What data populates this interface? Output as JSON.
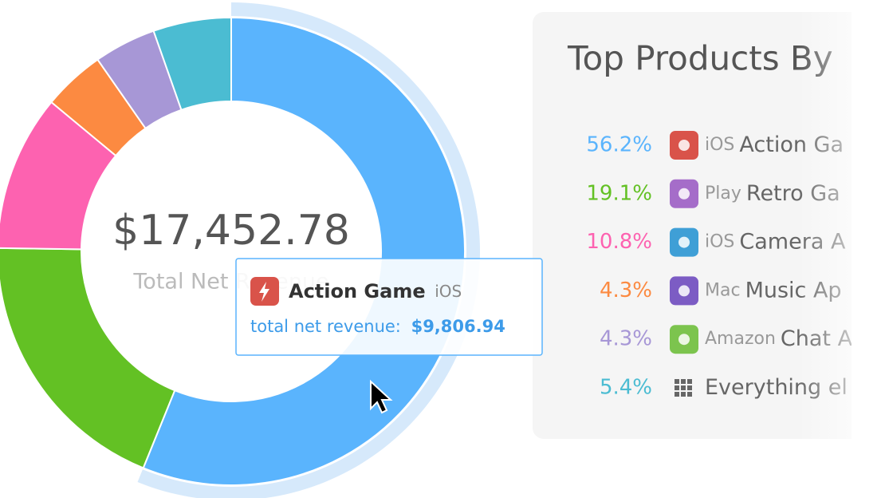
{
  "chart_data": {
    "type": "donut",
    "center_value": "$17,452.78",
    "center_label": "Total Net Revenue",
    "categories": [
      "Action Ga",
      "Retro Ga",
      "Camera A",
      "Music Ap",
      "Chat A",
      "Everything el"
    ],
    "platforms": [
      "iOS",
      "Play",
      "iOS",
      "Mac",
      "Amazon",
      null
    ],
    "values": [
      56.2,
      19.1,
      10.8,
      4.3,
      4.3,
      5.4
    ],
    "value_labels": [
      "56.2%",
      "19.1%",
      "10.8%",
      "4.3%",
      "4.3%",
      "5.4%"
    ],
    "colors": [
      "#5ab4fd",
      "#63c124",
      "#fd62b0",
      "#fc8a41",
      "#a797d6",
      "#4bbcd2"
    ]
  },
  "panel": {
    "title": "Top Products By"
  },
  "tooltip": {
    "name": "Action Game",
    "platform": "iOS",
    "label": "total net revenue:",
    "value": "$9,806.94"
  }
}
